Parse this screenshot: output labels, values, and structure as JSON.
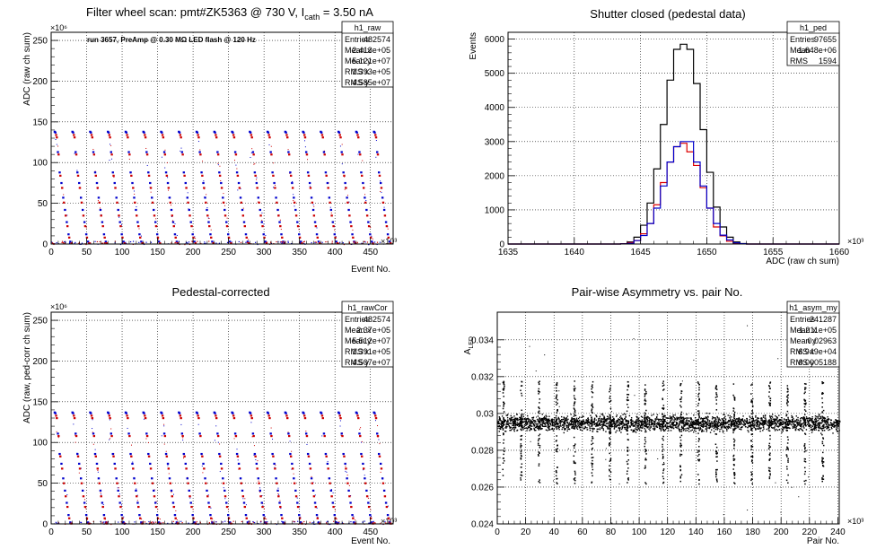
{
  "panels": [
    {
      "id": "raw",
      "title": "Filter wheel scan: pmt#ZK5363 @   730 V, I",
      "title_sub": "cath",
      "title_tail": " = 3.50 nA",
      "ylabel": "ADC (raw ch sum)",
      "xlabel": "Event No.",
      "y_exp": "×10⁶",
      "x_exp": "×10³",
      "annotation": "run 3657, PreAmp @ 0.30 MΩ LED flash @  120 Hz",
      "stats": {
        "name": "h1_raw",
        "rows": [
          [
            "Entries",
            "482574"
          ],
          [
            "Mean x",
            "2.413e+05"
          ],
          [
            "Mean y",
            "5.121e+07"
          ],
          [
            "RMS x",
            "1.393e+05"
          ],
          [
            "RMS y",
            "4.585e+07"
          ]
        ]
      }
    },
    {
      "id": "ped",
      "title": "Shutter closed (pedestal data)",
      "ylabel": "Events",
      "xlabel": "ADC (raw ch sum)",
      "x_exp": "×10³",
      "stats": {
        "name": "h1_ped",
        "rows": [
          [
            "Entries",
            "97655"
          ],
          [
            "Mean",
            "1.648e+06"
          ],
          [
            "RMS",
            "1594"
          ]
        ]
      }
    },
    {
      "id": "cor",
      "title": "Pedestal-corrected",
      "ylabel": "ADC (raw, ped-corr ch sum)",
      "xlabel": "Event No.",
      "y_exp": "×10⁶",
      "x_exp": "×10³",
      "stats": {
        "name": "h1_rawCor",
        "rows": [
          [
            "Entries",
            "482574"
          ],
          [
            "Mean x",
            "2.37e+05"
          ],
          [
            "Mean y",
            "5.512e+07"
          ],
          [
            "RMS x",
            "1.391e+05"
          ],
          [
            "RMS y",
            "4.507e+07"
          ]
        ]
      }
    },
    {
      "id": "asym",
      "title": "Pair-wise Asymmetry vs. pair No.",
      "ylabel": "A",
      "ylabel_sub": "LED",
      "xlabel": "Pair No.",
      "x_exp": "×10³",
      "stats": {
        "name": "h1_asym_my",
        "rows": [
          [
            "Entries",
            "241287"
          ],
          [
            "Mean x",
            "1.211e+05"
          ],
          [
            "Mean y",
            "0.02963"
          ],
          [
            "RMS x",
            "6.949e+04"
          ],
          [
            "RMS y",
            "0.0005188"
          ]
        ]
      }
    }
  ],
  "chart_data": [
    {
      "type": "scatter",
      "panel": "raw",
      "title": "Filter wheel scan: pmt#ZK5363 @   730 V, I_cath = 3.50 nA",
      "xlabel": "Event No.",
      "ylabel": "ADC (raw ch sum)",
      "x_unit_exponent": 3,
      "y_unit_exponent": 6,
      "xlim": [
        0,
        482
      ],
      "ylim": [
        0,
        260
      ],
      "x_ticks": [
        0,
        50,
        100,
        150,
        200,
        250,
        300,
        350,
        400,
        450
      ],
      "y_ticks": [
        0,
        50,
        100,
        150,
        200,
        250
      ],
      "grid": true,
      "period": 25,
      "first_cycle_x": 5,
      "cycles": 19,
      "levels": [
        {
          "offset": 0,
          "y": 138,
          "color": "#0000cc"
        },
        {
          "offset": 1,
          "y": 137,
          "color": "#0000cc"
        },
        {
          "offset": 2,
          "y": 134,
          "color": "#cc0000"
        },
        {
          "offset": 3,
          "y": 131,
          "color": "#cc0000"
        },
        {
          "offset": 4.5,
          "y": 113,
          "color": "#0000cc"
        },
        {
          "offset": 5.5,
          "y": 110,
          "color": "#cc0000"
        },
        {
          "offset": 7,
          "y": 88,
          "color": "#0000cc"
        },
        {
          "offset": 8,
          "y": 84,
          "color": "#cc0000"
        },
        {
          "offset": 9.5,
          "y": 75,
          "color": "#0000cc"
        },
        {
          "offset": 10.5,
          "y": 69,
          "color": "#cc0000"
        },
        {
          "offset": 12,
          "y": 57,
          "color": "#0000cc"
        },
        {
          "offset": 13,
          "y": 51,
          "color": "#cc0000"
        },
        {
          "offset": 14.5,
          "y": 42,
          "color": "#0000cc"
        },
        {
          "offset": 15.5,
          "y": 35,
          "color": "#cc0000"
        },
        {
          "offset": 17,
          "y": 27,
          "color": "#0000cc"
        },
        {
          "offset": 18,
          "y": 22,
          "color": "#cc0000"
        },
        {
          "offset": 19.5,
          "y": 12,
          "color": "#0000cc"
        },
        {
          "offset": 20.5,
          "y": 8,
          "color": "#cc0000"
        },
        {
          "offset": 22,
          "y": 3,
          "color": "#0000cc"
        },
        {
          "offset": 23.5,
          "y": 1,
          "color": "#cc0000"
        }
      ]
    },
    {
      "type": "line",
      "panel": "ped",
      "title": "Shutter closed (pedestal data)",
      "xlabel": "ADC (raw ch sum)",
      "ylabel": "Events",
      "x_unit_exponent": 3,
      "xlim": [
        1635,
        1660
      ],
      "ylim": [
        0,
        6200
      ],
      "x_ticks": [
        1635,
        1640,
        1645,
        1650,
        1655,
        1660
      ],
      "y_ticks": [
        0,
        1000,
        2000,
        3000,
        4000,
        5000,
        6000
      ],
      "grid": true,
      "x": [
        1643.0,
        1643.5,
        1644.0,
        1644.5,
        1645.0,
        1645.5,
        1646.0,
        1646.5,
        1647.0,
        1647.5,
        1648.0,
        1648.5,
        1649.0,
        1649.5,
        1650.0,
        1650.5,
        1651.0,
        1651.5,
        1652.0,
        1652.5,
        1653.0
      ],
      "series": [
        {
          "name": "total",
          "color": "#000000",
          "values": [
            0,
            10,
            60,
            200,
            550,
            1200,
            2200,
            3500,
            4800,
            5700,
            5850,
            5700,
            4700,
            3350,
            2100,
            1080,
            500,
            200,
            60,
            15,
            0
          ]
        },
        {
          "name": "red",
          "color": "#dd0000",
          "values": [
            0,
            5,
            40,
            100,
            300,
            600,
            1150,
            1800,
            2400,
            2850,
            2950,
            2700,
            2300,
            1650,
            1050,
            500,
            240,
            80,
            25,
            5,
            0
          ]
        },
        {
          "name": "blue",
          "color": "#0000cc",
          "values": [
            0,
            5,
            20,
            100,
            250,
            600,
            1050,
            1700,
            2400,
            2850,
            3000,
            3000,
            2400,
            1700,
            1050,
            600,
            260,
            120,
            35,
            10,
            0
          ]
        }
      ]
    },
    {
      "type": "scatter",
      "panel": "cor",
      "title": "Pedestal-corrected",
      "xlabel": "Event No.",
      "ylabel": "ADC (raw, ped-corr ch sum)",
      "x_unit_exponent": 3,
      "y_unit_exponent": 6,
      "xlim": [
        0,
        482
      ],
      "ylim": [
        0,
        260
      ],
      "x_ticks": [
        0,
        50,
        100,
        150,
        200,
        250,
        300,
        350,
        400,
        450
      ],
      "y_ticks": [
        0,
        50,
        100,
        150,
        200,
        250
      ],
      "grid": true,
      "period": 25,
      "first_cycle_x": 5,
      "cycles": 19,
      "levels": [
        {
          "offset": 0,
          "y": 137,
          "color": "#0000cc"
        },
        {
          "offset": 1,
          "y": 136,
          "color": "#0000cc"
        },
        {
          "offset": 2,
          "y": 133,
          "color": "#cc0000"
        },
        {
          "offset": 3,
          "y": 130,
          "color": "#cc0000"
        },
        {
          "offset": 4.5,
          "y": 111,
          "color": "#0000cc"
        },
        {
          "offset": 5.5,
          "y": 108,
          "color": "#cc0000"
        },
        {
          "offset": 7,
          "y": 86,
          "color": "#0000cc"
        },
        {
          "offset": 8,
          "y": 83,
          "color": "#cc0000"
        },
        {
          "offset": 9.5,
          "y": 74,
          "color": "#0000cc"
        },
        {
          "offset": 10.5,
          "y": 68,
          "color": "#cc0000"
        },
        {
          "offset": 12,
          "y": 56,
          "color": "#0000cc"
        },
        {
          "offset": 13,
          "y": 50,
          "color": "#cc0000"
        },
        {
          "offset": 14.5,
          "y": 41,
          "color": "#0000cc"
        },
        {
          "offset": 15.5,
          "y": 34,
          "color": "#cc0000"
        },
        {
          "offset": 17,
          "y": 26,
          "color": "#0000cc"
        },
        {
          "offset": 18,
          "y": 21,
          "color": "#cc0000"
        },
        {
          "offset": 19.5,
          "y": 11,
          "color": "#0000cc"
        },
        {
          "offset": 20.5,
          "y": 7,
          "color": "#cc0000"
        },
        {
          "offset": 22,
          "y": 2,
          "color": "#0000cc"
        },
        {
          "offset": 23.5,
          "y": 0.5,
          "color": "#cc0000"
        }
      ]
    },
    {
      "type": "scatter",
      "panel": "asym",
      "title": "Pair-wise Asymmetry vs. pair No.",
      "xlabel": "Pair No.",
      "ylabel": "A_LED",
      "x_unit_exponent": 3,
      "xlim": [
        0,
        241
      ],
      "ylim": [
        0.024,
        0.0355
      ],
      "x_ticks": [
        0,
        20,
        40,
        60,
        80,
        100,
        120,
        140,
        160,
        180,
        200,
        220,
        240
      ],
      "y_ticks": [
        0.024,
        0.026,
        0.028,
        0.03,
        0.032,
        0.034
      ],
      "grid": true,
      "band_center": 0.0295,
      "band_halfwidth": 0.0006,
      "spike_period": 12.5,
      "spike_first_x": 4,
      "spike_top": 0.0318,
      "spike_bottom": 0.0262
    }
  ]
}
